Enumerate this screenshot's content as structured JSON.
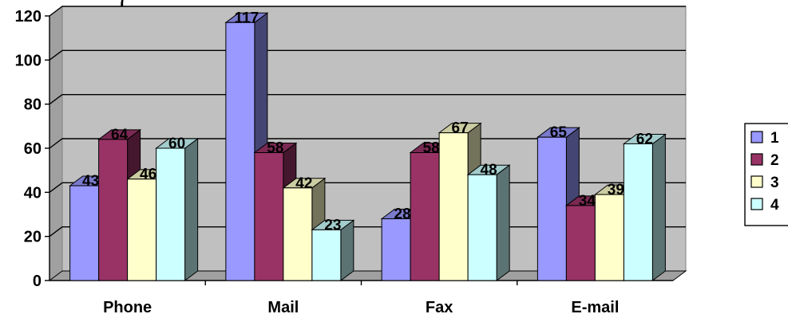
{
  "top_fragment": "(",
  "chart_data": {
    "type": "bar",
    "style": "3d-clustered-column",
    "categories": [
      "Phone",
      "Mail",
      "Fax",
      "E-mail"
    ],
    "series": [
      {
        "name": "1",
        "values": [
          43,
          117,
          28,
          65
        ],
        "color": "#9999ff"
      },
      {
        "name": "2",
        "values": [
          64,
          58,
          58,
          34
        ],
        "color": "#993366"
      },
      {
        "name": "3",
        "values": [
          46,
          42,
          67,
          39
        ],
        "color": "#ffffcc"
      },
      {
        "name": "4",
        "values": [
          60,
          23,
          48,
          62
        ],
        "color": "#ccffff"
      }
    ],
    "title": "",
    "xlabel": "",
    "ylabel": "",
    "ylim": [
      0,
      120
    ],
    "yticks": [
      "0",
      "20",
      "40",
      "60",
      "80",
      "100",
      "120"
    ],
    "grid": true,
    "legend_position": "right",
    "plot_background": "#c0c0c0"
  }
}
